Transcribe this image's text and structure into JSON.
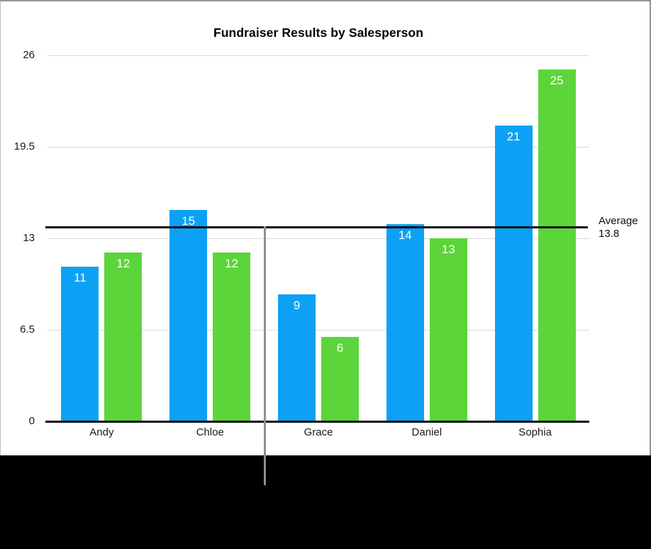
{
  "chart_data": {
    "type": "bar",
    "title": "Fundraiser Results by Salesperson",
    "categories": [
      "Andy",
      "Chloe",
      "Grace",
      "Daniel",
      "Sophia"
    ],
    "series": [
      {
        "name": "blue-series",
        "color": "#0ca1f5",
        "values": [
          11,
          15,
          9,
          14,
          21
        ]
      },
      {
        "name": "green-series",
        "color": "#5bd53a",
        "values": [
          12,
          12,
          6,
          13,
          25
        ]
      }
    ],
    "y_tick_labels": [
      "26",
      "19.5",
      "13",
      "6.5",
      "0"
    ],
    "y_tick_values": [
      26,
      19.5,
      13,
      6.5,
      0
    ],
    "ylim": [
      0,
      26
    ],
    "grid": true,
    "legend": "none",
    "value_labels": "inside-top",
    "average": 13.8,
    "average_label_lines": [
      "Average",
      "13.8"
    ],
    "colors": {
      "gridline": "#d9d9d9",
      "axis": "#0d0d0d",
      "average_line": "#0d0d0d",
      "callout_line": "#8f8f8f",
      "value_label_text": "#ffffff"
    }
  }
}
